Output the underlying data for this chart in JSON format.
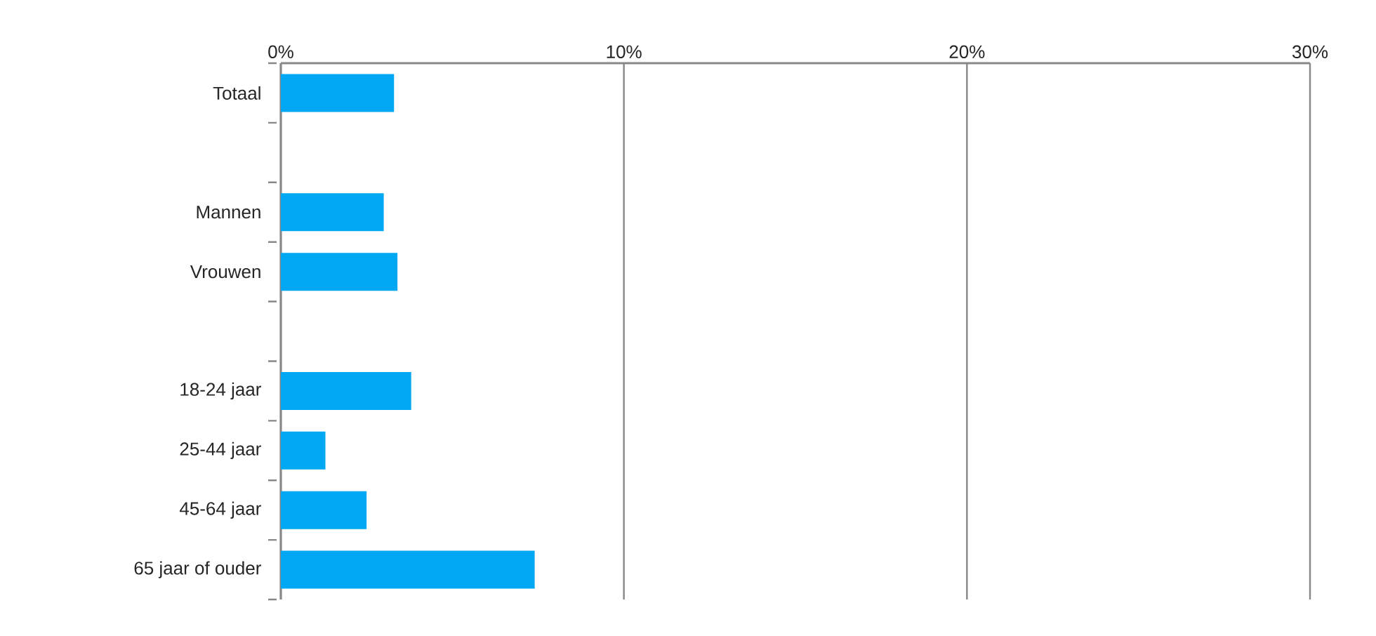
{
  "chart_data": {
    "type": "bar",
    "orientation": "horizontal",
    "categories": [
      "Totaal",
      null,
      "Mannen",
      "Vrouwen",
      null,
      "18-24 jaar",
      "25-44 jaar",
      "45-64 jaar",
      "65 jaar of ouder"
    ],
    "values": [
      3.3,
      null,
      3.0,
      3.4,
      null,
      3.8,
      1.3,
      2.5,
      7.4
    ],
    "color": "#00a8f3",
    "xlim": [
      0,
      30
    ],
    "xticks": [
      {
        "value": 0,
        "label": "0%"
      },
      {
        "value": 10,
        "label": "10%"
      },
      {
        "value": 20,
        "label": "20%"
      },
      {
        "value": 30,
        "label": "30%"
      }
    ],
    "grid": "x"
  }
}
